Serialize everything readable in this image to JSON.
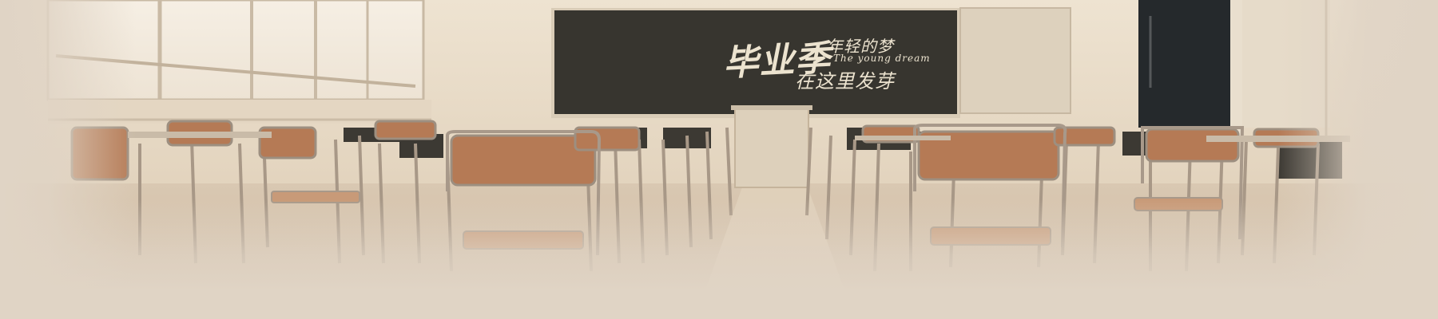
{
  "board": {
    "title_main": "毕业季",
    "title_side": "年轻的梦",
    "subtitle": "The young dream",
    "line2": "在这里发芽"
  },
  "colors": {
    "board": "#37352f",
    "chalk": "#ece3cf",
    "wall": "#e8dcc8",
    "chair_wood": "#b57a55",
    "floor": "#d6c4b0",
    "door": "#25292c"
  }
}
